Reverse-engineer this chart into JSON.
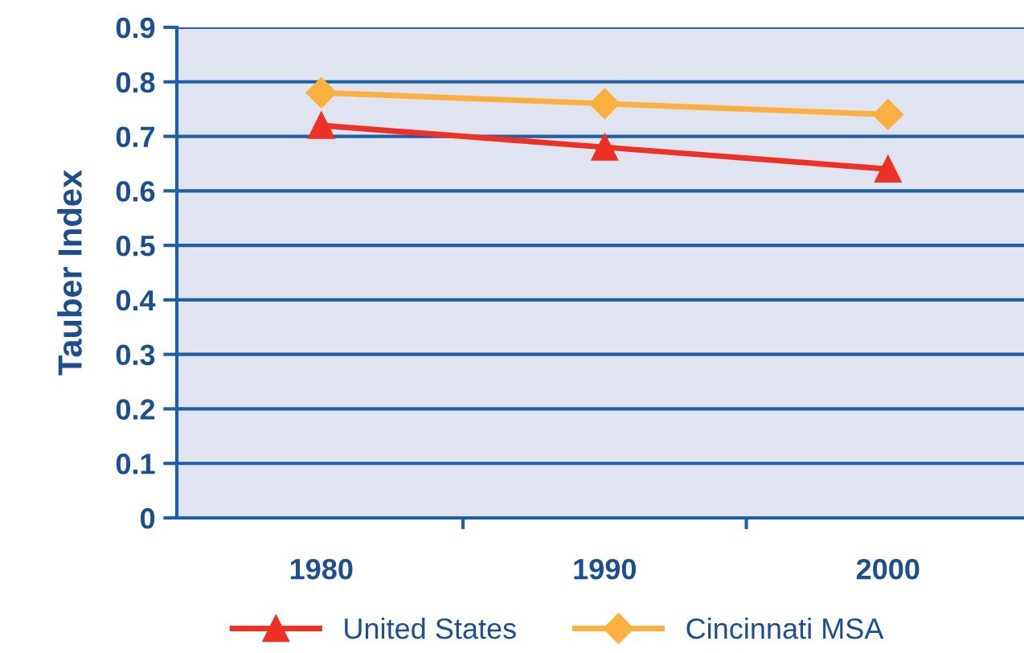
{
  "chart_data": {
    "type": "line",
    "ylabel": "Tauber Index",
    "categories": [
      "1980",
      "1990",
      "2000"
    ],
    "series": [
      {
        "name": "United States",
        "color": "#ee3124",
        "values": [
          0.72,
          0.68,
          0.64
        ],
        "marker": "triangle"
      },
      {
        "name": "Cincinnati MSA",
        "color": "#fbb040",
        "values": [
          0.78,
          0.76,
          0.74
        ],
        "marker": "diamond"
      }
    ],
    "ylim": [
      0,
      0.9
    ],
    "yticks": [
      0,
      0.1,
      0.2,
      0.3,
      0.4,
      0.5,
      0.6,
      0.7,
      0.8,
      0.9
    ],
    "grid": "y",
    "legend": "bottom",
    "line_style": "solid"
  }
}
